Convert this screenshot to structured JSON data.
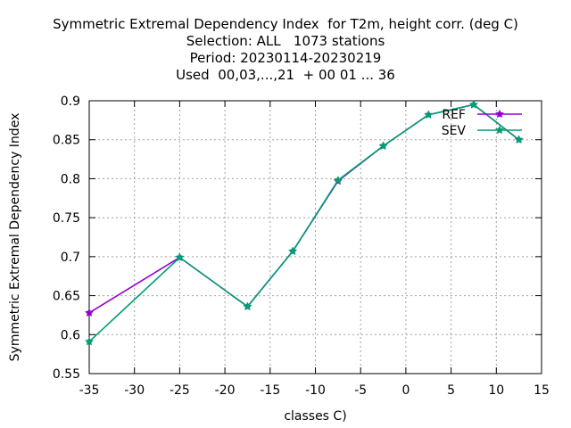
{
  "chart_data": {
    "type": "line",
    "title_lines": [
      "Symmetric Extremal Dependency Index  for T2m, height corr. (deg C)",
      "Selection: ALL   1073 stations",
      "Period: 20230114-20230219",
      "Used  00,03,...,21  + 00 01 ... 36"
    ],
    "xlabel": "classes C)",
    "ylabel": "Symmetric Extremal Dependency Index",
    "xlim": [
      -35,
      15
    ],
    "ylim": [
      0.55,
      0.9
    ],
    "xticks": [
      -35,
      -30,
      -25,
      -20,
      -15,
      -10,
      -5,
      0,
      5,
      10,
      15
    ],
    "yticks": [
      0.55,
      0.6,
      0.65,
      0.7,
      0.75,
      0.8,
      0.85,
      0.9
    ],
    "xtick_labels": [
      "-35",
      "-30",
      "-25",
      "-20",
      "-15",
      "-10",
      "-5",
      "0",
      "5",
      "10",
      "15"
    ],
    "ytick_labels": [
      "0.55",
      "0.6",
      "0.65",
      "0.7",
      "0.75",
      "0.8",
      "0.85",
      "0.9"
    ],
    "grid": true,
    "legend_position": "top-right",
    "series": [
      {
        "name": "REF",
        "color": "#9400d3",
        "x": [
          -35,
          -25,
          -17.5,
          -12.5,
          -7.5,
          -2.5,
          2.5,
          7.5,
          12.5
        ],
        "y": [
          0.628,
          0.699,
          0.636,
          0.707,
          0.797,
          0.842,
          0.882,
          0.895,
          0.85
        ]
      },
      {
        "name": "SEV",
        "color": "#009e73",
        "x": [
          -35,
          -25,
          -17.5,
          -12.5,
          -7.5,
          -2.5,
          2.5,
          7.5,
          12.5
        ],
        "y": [
          0.591,
          0.699,
          0.636,
          0.707,
          0.798,
          0.842,
          0.882,
          0.895,
          0.85
        ]
      }
    ]
  }
}
